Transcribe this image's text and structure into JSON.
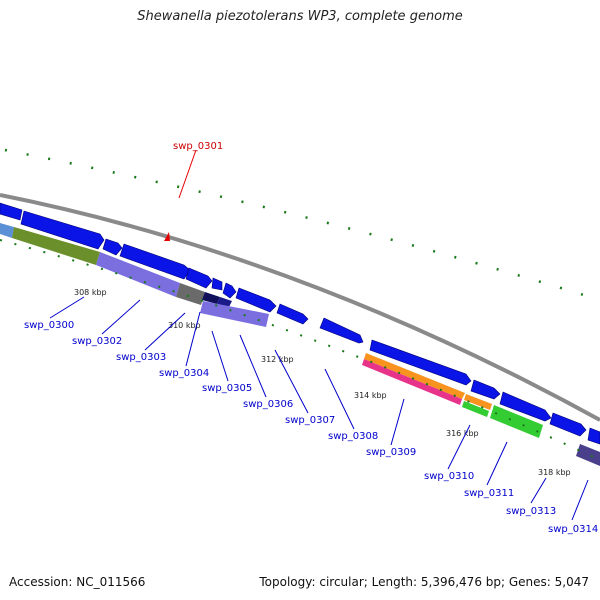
{
  "title": "Shewanella piezotolerans WP3, complete genome",
  "accession": "Accession: NC_011566",
  "summary": "Topology: circular; Length: 5,396,476 bp; Genes: 5,047",
  "colors": {
    "backbone": "#8a8a8a",
    "gene_forward": "#0a14e6",
    "dot_marks": "#1a7a1a",
    "label_blue": "#0000cc",
    "label_red": "#cc0000",
    "pointer_red": "#e60000"
  },
  "tick_labels": [
    "308 kbp",
    "310 kbp",
    "312 kbp",
    "314 kbp",
    "316 kbp",
    "318 kbp"
  ],
  "genes": [
    {
      "label": "swp_0300",
      "highlight": false
    },
    {
      "label": "swp_0301",
      "highlight": true
    },
    {
      "label": "swp_0302",
      "highlight": false
    },
    {
      "label": "swp_0303",
      "highlight": false
    },
    {
      "label": "swp_0304",
      "highlight": false
    },
    {
      "label": "swp_0305",
      "highlight": false
    },
    {
      "label": "swp_0306",
      "highlight": false
    },
    {
      "label": "swp_0307",
      "highlight": false
    },
    {
      "label": "swp_0308",
      "highlight": false
    },
    {
      "label": "swp_0309",
      "highlight": false
    },
    {
      "label": "swp_0310",
      "highlight": false
    },
    {
      "label": "swp_0311",
      "highlight": false
    },
    {
      "label": "swp_0313",
      "highlight": false
    },
    {
      "label": "swp_0314",
      "highlight": false
    }
  ]
}
